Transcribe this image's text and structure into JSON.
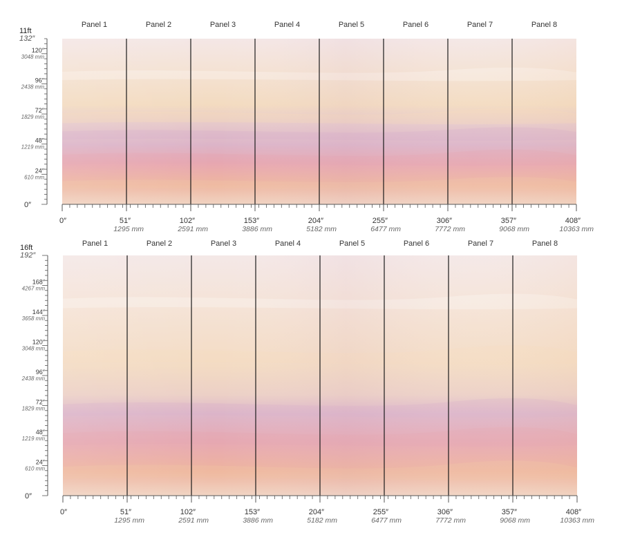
{
  "colors": {
    "sky_top": "#f3e6e3",
    "sky_cream": "#f3dcc3",
    "lavender": "#dcb5c8",
    "pink": "#e9a9ad",
    "peach": "#eeb9a0",
    "bottom_light": "#f0d0bd",
    "divider": "#1a1a1a",
    "tick": "#555555"
  },
  "diagrams": [
    {
      "height_label": "11ft",
      "top_inch": "132″",
      "panels": [
        "Panel 1",
        "Panel 2",
        "Panel 3",
        "Panel 4",
        "Panel 5",
        "Panel 6",
        "Panel 7",
        "Panel 8"
      ],
      "y_ticks": [
        {
          "inch": "120″",
          "mm": "3048 mm",
          "value": 120
        },
        {
          "inch": "96″",
          "mm": "2438 mm",
          "value": 96
        },
        {
          "inch": "72″",
          "mm": "1829 mm",
          "value": 72
        },
        {
          "inch": "48″",
          "mm": "1219 mm",
          "value": 48
        },
        {
          "inch": "24″",
          "mm": "610 mm",
          "value": 24
        }
      ],
      "zero_label": "0″",
      "max_inches": 132,
      "x_ticks": [
        {
          "inch": "0″",
          "mm": ""
        },
        {
          "inch": "51″",
          "mm": "1295 mm"
        },
        {
          "inch": "102″",
          "mm": "2591 mm"
        },
        {
          "inch": "153″",
          "mm": "3886 mm"
        },
        {
          "inch": "204″",
          "mm": "5182 mm"
        },
        {
          "inch": "255″",
          "mm": "6477 mm"
        },
        {
          "inch": "306″",
          "mm": "7772 mm"
        },
        {
          "inch": "357″",
          "mm": "9068 mm"
        },
        {
          "inch": "408″",
          "mm": "10363 mm"
        }
      ]
    },
    {
      "height_label": "16ft",
      "top_inch": "192″",
      "panels": [
        "Panel 1",
        "Panel 2",
        "Panel 3",
        "Panel 4",
        "Panel 5",
        "Panel 6",
        "Panel 7",
        "Panel 8"
      ],
      "y_ticks": [
        {
          "inch": "168″",
          "mm": "4267 mm",
          "value": 168
        },
        {
          "inch": "144″",
          "mm": "3658 mm",
          "value": 144
        },
        {
          "inch": "120″",
          "mm": "3048 mm",
          "value": 120
        },
        {
          "inch": "96″",
          "mm": "2438 mm",
          "value": 96
        },
        {
          "inch": "72″",
          "mm": "1829 mm",
          "value": 72
        },
        {
          "inch": "48″",
          "mm": "1219 mm",
          "value": 48
        },
        {
          "inch": "24″",
          "mm": "610 mm",
          "value": 24
        }
      ],
      "zero_label": "0″",
      "max_inches": 192,
      "x_ticks": [
        {
          "inch": "0″",
          "mm": ""
        },
        {
          "inch": "51″",
          "mm": "1295 mm"
        },
        {
          "inch": "102″",
          "mm": "2591 mm"
        },
        {
          "inch": "153″",
          "mm": "3886 mm"
        },
        {
          "inch": "204″",
          "mm": "5182 mm"
        },
        {
          "inch": "255″",
          "mm": "6477 mm"
        },
        {
          "inch": "306″",
          "mm": "7772 mm"
        },
        {
          "inch": "357″",
          "mm": "9068 mm"
        },
        {
          "inch": "408″",
          "mm": "10363 mm"
        }
      ]
    }
  ]
}
